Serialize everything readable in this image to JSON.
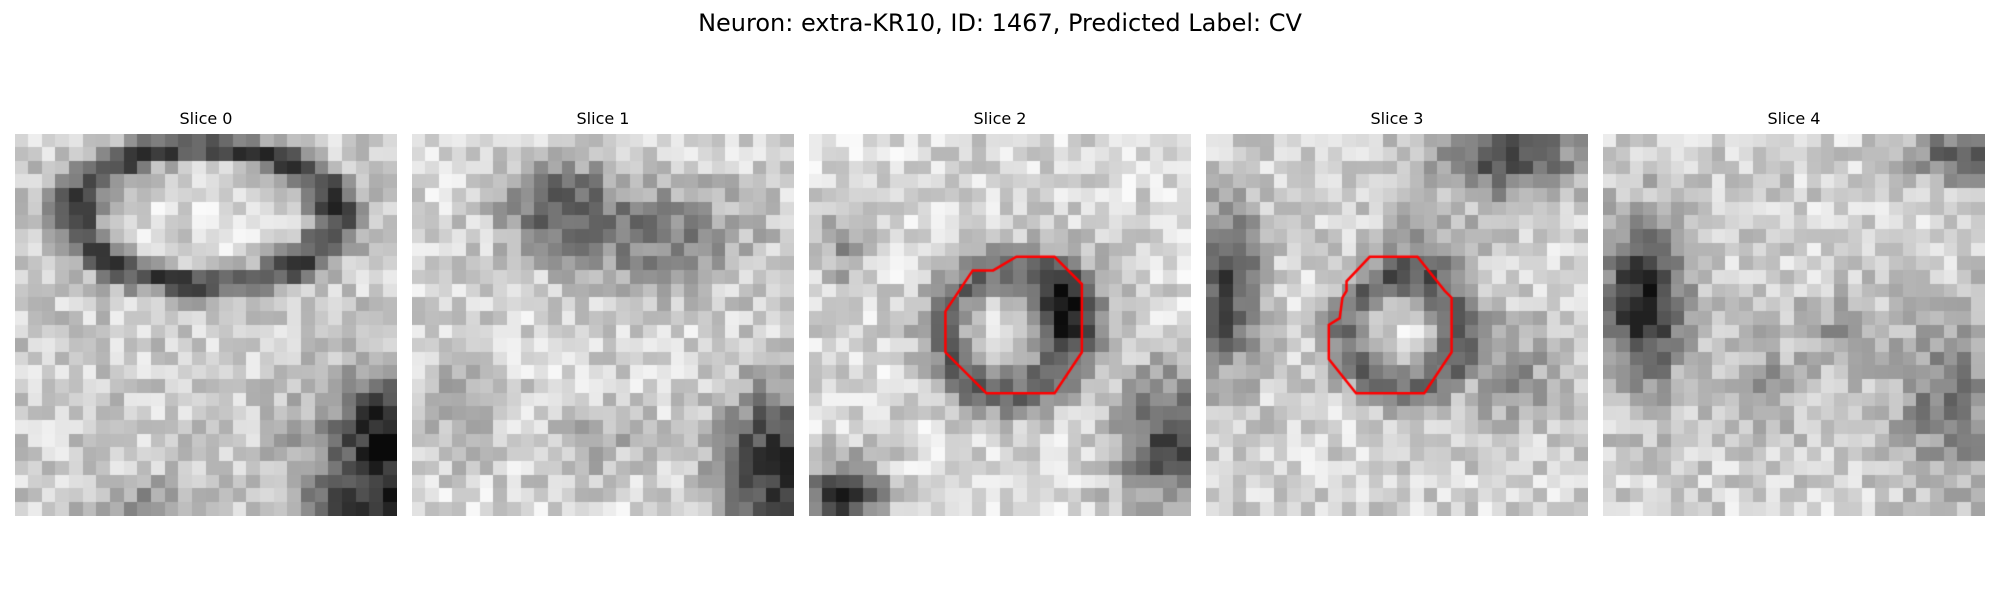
{
  "figure": {
    "title": "Neuron: extra-KR10, ID: 1467, Predicted Label: CV"
  },
  "colors": {
    "background": "#ffffff",
    "contour": "#ff0000",
    "colormap": "gray"
  },
  "slices": [
    {
      "label": "Slice 0",
      "has_contour": false
    },
    {
      "label": "Slice 1",
      "has_contour": false
    },
    {
      "label": "Slice 2",
      "has_contour": true
    },
    {
      "label": "Slice 3",
      "has_contour": true
    },
    {
      "label": "Slice 4",
      "has_contour": false
    }
  ]
}
